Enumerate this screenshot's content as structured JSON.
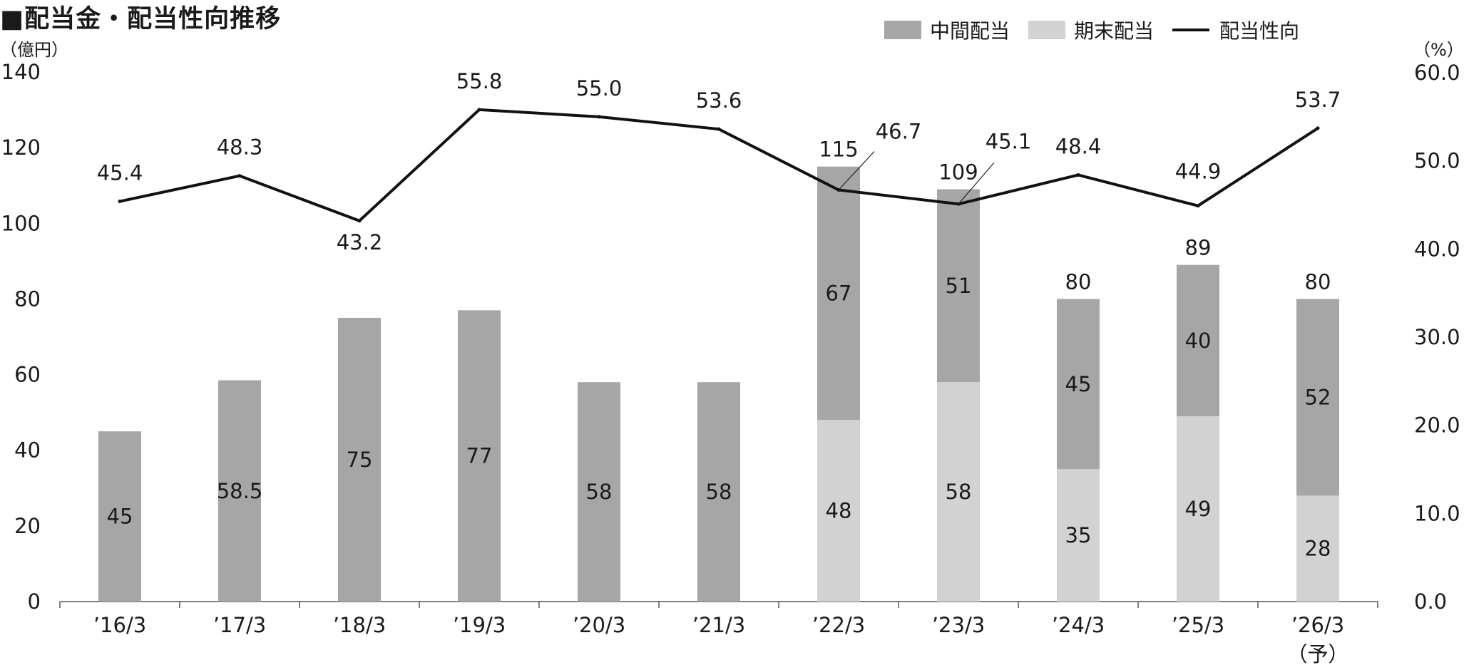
{
  "title": "■配当金・配当性向推移",
  "left_unit": "（億円）",
  "right_unit": "（%）",
  "colors": {
    "interim": "#a6a6a6",
    "year_end": "#d2d2d2",
    "line": "#111111"
  },
  "chart_data": {
    "type": "bar",
    "stacked": true,
    "categories": [
      "’16/3",
      "’17/3",
      "’18/3",
      "’19/3",
      "’20/3",
      "’21/3",
      "’22/3",
      "’23/3",
      "’24/3",
      "’25/3",
      "’26/3"
    ],
    "category_notes": [
      "",
      "",
      "",
      "",
      "",
      "",
      "",
      "",
      "",
      "",
      "（予）"
    ],
    "series": [
      {
        "name": "中間配当",
        "type": "bar",
        "values": [
          45,
          58.5,
          75,
          77,
          58,
          58,
          67,
          51,
          45,
          40,
          52
        ]
      },
      {
        "name": "期末配当",
        "type": "bar",
        "values": [
          null,
          null,
          null,
          null,
          null,
          null,
          48,
          58,
          35,
          49,
          28
        ]
      },
      {
        "name": "配当性向",
        "type": "line",
        "axis": "right",
        "values": [
          45.4,
          48.3,
          43.2,
          55.8,
          55.0,
          53.6,
          46.7,
          45.1,
          48.4,
          44.9,
          53.7
        ]
      }
    ],
    "totals": [
      null,
      null,
      null,
      null,
      null,
      null,
      115,
      109,
      80,
      89,
      80
    ],
    "y_left": {
      "range": [
        0,
        140
      ],
      "ticks": [
        "0",
        "20",
        "40",
        "60",
        "80",
        "100",
        "120",
        "140"
      ]
    },
    "y_right": {
      "range": [
        0,
        60
      ],
      "ticks": [
        "0.0",
        "10.0",
        "20.0",
        "30.0",
        "40.0",
        "50.0",
        "60.0"
      ]
    },
    "ratio_labels": [
      "45.4",
      "48.3",
      "43.2",
      "55.8",
      "55.0",
      "53.6",
      "46.7",
      "45.1",
      "48.4",
      "44.9",
      "53.7"
    ],
    "bar_labels_interim": [
      "45",
      "58.5",
      "75",
      "77",
      "58",
      "58",
      "67",
      "51",
      "45",
      "40",
      "52"
    ],
    "bar_labels_year_end": [
      "",
      "",
      "",
      "",
      "",
      "",
      "48",
      "58",
      "35",
      "49",
      "28"
    ],
    "total_labels": [
      "",
      "",
      "",
      "",
      "",
      "",
      "115",
      "109",
      "80",
      "89",
      "80"
    ],
    "legend_position": "top-right",
    "grid": false
  }
}
